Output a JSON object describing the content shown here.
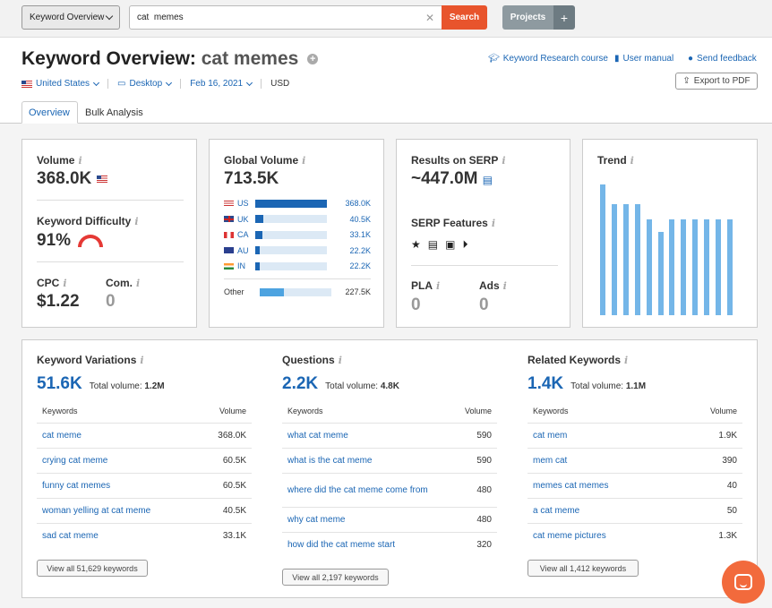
{
  "topbar": {
    "db_selector": "Keyword Overview",
    "search_value": "cat  memes",
    "search_button": "Search",
    "projects_button": "Projects",
    "add_button": "+"
  },
  "header": {
    "title_prefix": "Keyword Overview:",
    "keyword": "cat memes",
    "links": {
      "course": "Keyword Research course",
      "manual": "User manual",
      "feedback": "Send feedback"
    },
    "filters": {
      "country": "United States",
      "device": "Desktop",
      "date": "Feb 16, 2021",
      "currency": "USD"
    },
    "export": "Export to PDF",
    "tabs": [
      "Overview",
      "Bulk Analysis"
    ]
  },
  "metrics": {
    "volume_label": "Volume",
    "volume": "368.0K",
    "kd_label": "Keyword Difficulty",
    "kd": "91%",
    "kd_value": 91,
    "cpc_label": "CPC",
    "cpc": "$1.22",
    "com_label": "Com.",
    "com": "0"
  },
  "global_volume": {
    "label": "Global Volume",
    "total": "713.5K",
    "countries": [
      {
        "code": "US",
        "value": "368.0K",
        "share": 0.52
      },
      {
        "code": "UK",
        "value": "40.5K",
        "share": 0.06
      },
      {
        "code": "CA",
        "value": "33.1K",
        "share": 0.05
      },
      {
        "code": "AU",
        "value": "22.2K",
        "share": 0.03
      },
      {
        "code": "IN",
        "value": "22.2K",
        "share": 0.03
      }
    ],
    "other_label": "Other",
    "other_value": "227.5K",
    "other_share": 0.32
  },
  "serp": {
    "results_label": "Results on SERP",
    "results": "~447.0M",
    "features_label": "SERP Features",
    "feature_icons": [
      "star-icon",
      "document-icon",
      "image-icon",
      "play-icon"
    ],
    "pla_label": "PLA",
    "pla": "0",
    "ads_label": "Ads",
    "ads": "0"
  },
  "trend": {
    "label": "Trend",
    "values": [
      1.0,
      0.85,
      0.85,
      0.85,
      0.73,
      0.64,
      0.73,
      0.73,
      0.73,
      0.73,
      0.73,
      0.73
    ]
  },
  "sections": [
    {
      "title": "Keyword Variations",
      "count": "51.6K",
      "total_label": "Total volume:",
      "total": "1.2M",
      "col_keywords": "Keywords",
      "col_volume": "Volume",
      "rows": [
        {
          "k": "cat meme",
          "v": "368.0K"
        },
        {
          "k": "crying cat meme",
          "v": "60.5K"
        },
        {
          "k": "funny cat memes",
          "v": "60.5K"
        },
        {
          "k": "woman yelling at cat meme",
          "v": "40.5K"
        },
        {
          "k": "sad cat meme",
          "v": "33.1K"
        }
      ],
      "view_all": "View all 51,629 keywords"
    },
    {
      "title": "Questions",
      "count": "2.2K",
      "total_label": "Total volume:",
      "total": "4.8K",
      "col_keywords": "Keywords",
      "col_volume": "Volume",
      "rows": [
        {
          "k": "what cat meme",
          "v": "590"
        },
        {
          "k": "what is the cat meme",
          "v": "590"
        },
        {
          "k": "where did the cat meme come from",
          "v": "480"
        },
        {
          "k": "why cat meme",
          "v": "480"
        },
        {
          "k": "how did the cat meme start",
          "v": "320"
        }
      ],
      "view_all": "View all 2,197 keywords"
    },
    {
      "title": "Related Keywords",
      "count": "1.4K",
      "total_label": "Total volume:",
      "total": "1.1M",
      "col_keywords": "Keywords",
      "col_volume": "Volume",
      "rows": [
        {
          "k": "cat mem",
          "v": "1.9K"
        },
        {
          "k": "mem cat",
          "v": "390"
        },
        {
          "k": "memes cat memes",
          "v": "40"
        },
        {
          "k": "a cat meme",
          "v": "50"
        },
        {
          "k": "cat meme pictures",
          "v": "1.3K"
        }
      ],
      "view_all": "View all 1,412 keywords"
    }
  ]
}
